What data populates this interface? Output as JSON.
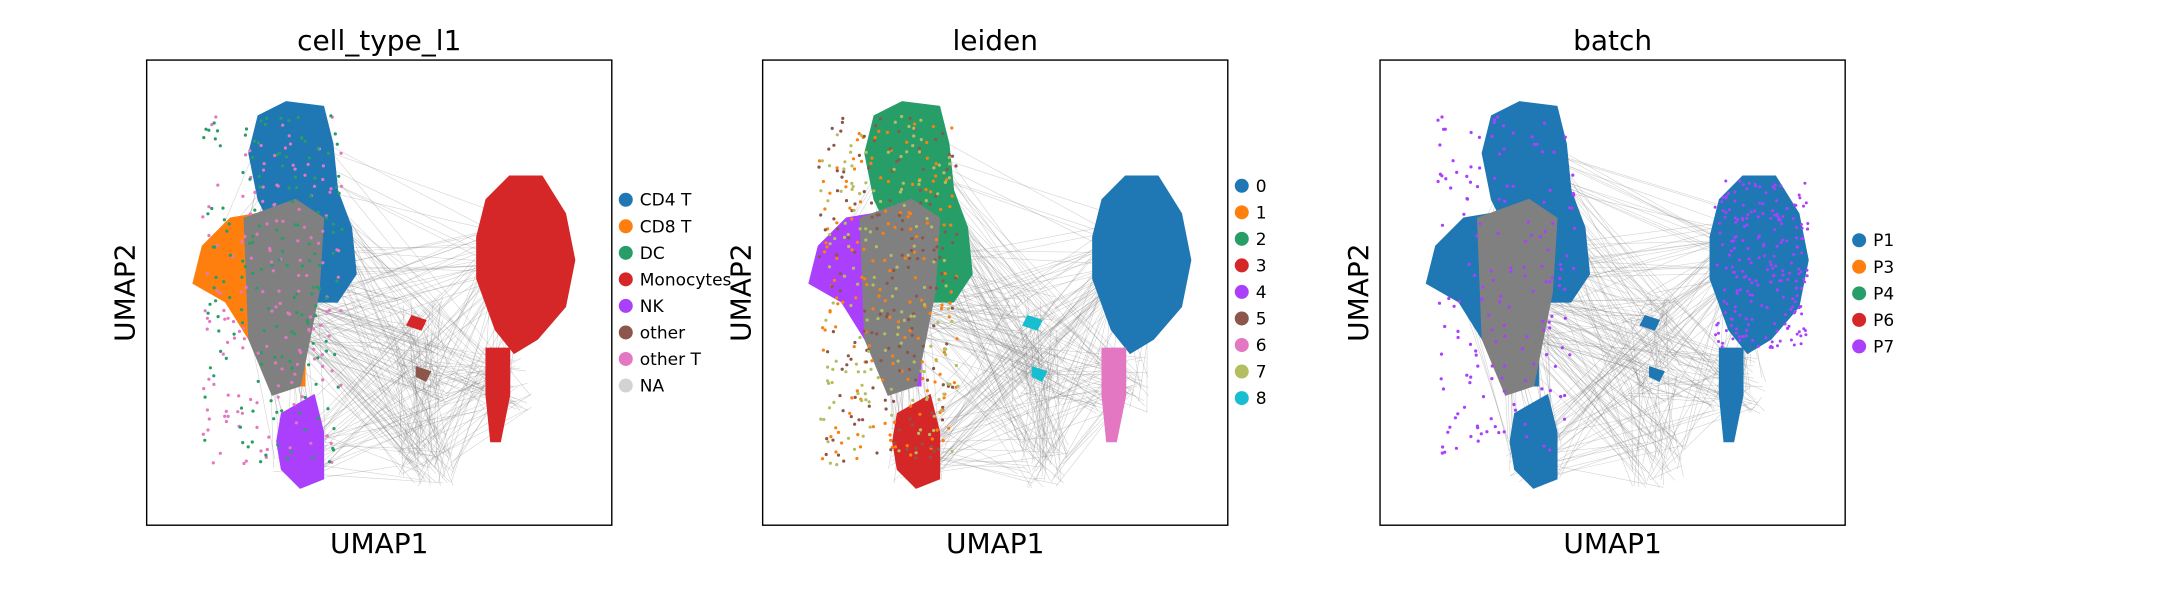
{
  "chart_data": [
    {
      "type": "scatter",
      "title": "cell_type_l1",
      "xlabel": "UMAP1",
      "ylabel": "UMAP2",
      "grid": false,
      "legend_position": "right",
      "legend": [
        {
          "name": "CD4 T",
          "color": "#1f77b4"
        },
        {
          "name": "CD8 T",
          "color": "#ff7f0e"
        },
        {
          "name": "DC",
          "color": "#279e68"
        },
        {
          "name": "Monocytes",
          "color": "#d62728"
        },
        {
          "name": "NK",
          "color": "#aa40fc"
        },
        {
          "name": "other",
          "color": "#8c564b"
        },
        {
          "name": "other T",
          "color": "#e377c2"
        },
        {
          "name": "NA",
          "color": "#d3d3d3"
        }
      ]
    },
    {
      "type": "scatter",
      "title": "leiden",
      "xlabel": "UMAP1",
      "ylabel": "UMAP2",
      "grid": false,
      "legend_position": "right",
      "legend": [
        {
          "name": "0",
          "color": "#1f77b4"
        },
        {
          "name": "1",
          "color": "#ff7f0e"
        },
        {
          "name": "2",
          "color": "#279e68"
        },
        {
          "name": "3",
          "color": "#d62728"
        },
        {
          "name": "4",
          "color": "#aa40fc"
        },
        {
          "name": "5",
          "color": "#8c564b"
        },
        {
          "name": "6",
          "color": "#e377c2"
        },
        {
          "name": "7",
          "color": "#b5bd61"
        },
        {
          "name": "8",
          "color": "#17becf"
        }
      ]
    },
    {
      "type": "scatter",
      "title": "batch",
      "xlabel": "UMAP1",
      "ylabel": "UMAP2",
      "grid": false,
      "legend_position": "right",
      "legend": [
        {
          "name": "P1",
          "color": "#1f77b4"
        },
        {
          "name": "P3",
          "color": "#ff7f0e"
        },
        {
          "name": "P4",
          "color": "#279e68"
        },
        {
          "name": "P6",
          "color": "#d62728"
        },
        {
          "name": "P7",
          "color": "#aa40fc"
        }
      ]
    }
  ],
  "colors": {
    "edges": "#808080",
    "ungrouped": "#808080",
    "frame": "#000000"
  }
}
